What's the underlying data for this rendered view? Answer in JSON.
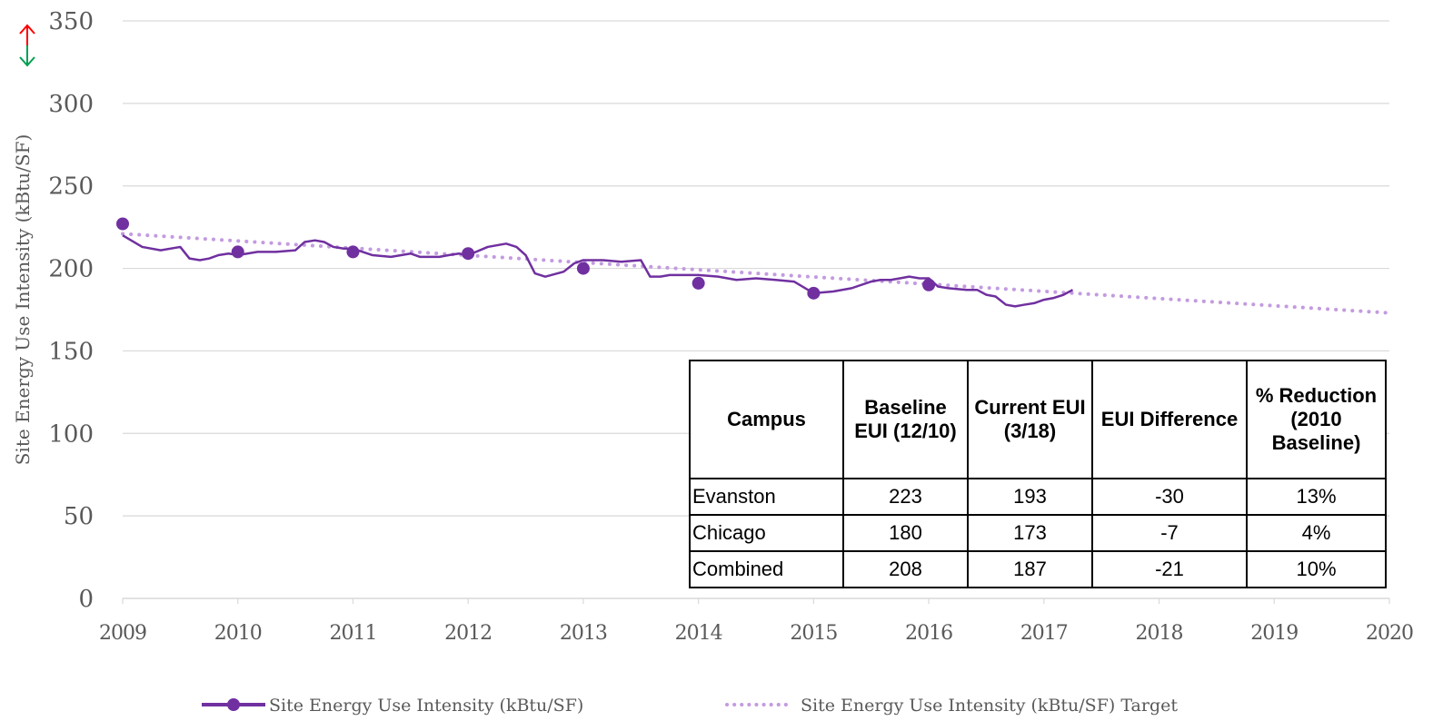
{
  "chart_data": {
    "type": "line",
    "ylabel": "Site Energy Use Intensity (kBtu/SF)",
    "ylim": [
      0,
      350
    ],
    "yticks": [
      0,
      50,
      100,
      150,
      200,
      250,
      300,
      350
    ],
    "xlim": [
      2009,
      2020
    ],
    "xticks": [
      "2009",
      "2010",
      "2011",
      "2012",
      "2013",
      "2014",
      "2015",
      "2016",
      "2017",
      "2018",
      "2019",
      "2020"
    ],
    "grid": true,
    "legend_position": "bottom",
    "axis_icon": {
      "up_color": "#ff0000",
      "down_color": "#00a050"
    },
    "colors": {
      "actual": "#7030a0",
      "target": "#c39be0",
      "grid": "#d9d9d9"
    },
    "series": [
      {
        "name": "Site Energy Use Intensity (kBtu/SF)",
        "style": "line-with-annual-markers",
        "x": [
          2009.0,
          2009.17,
          2009.33,
          2009.5,
          2009.58,
          2009.67,
          2009.75,
          2009.83,
          2009.92,
          2010.0,
          2010.17,
          2010.33,
          2010.5,
          2010.58,
          2010.67,
          2010.75,
          2010.83,
          2010.92,
          2011.0,
          2011.17,
          2011.33,
          2011.5,
          2011.58,
          2011.67,
          2011.75,
          2011.83,
          2011.92,
          2012.0,
          2012.17,
          2012.33,
          2012.42,
          2012.5,
          2012.58,
          2012.67,
          2012.83,
          2012.92,
          2013.0,
          2013.17,
          2013.33,
          2013.5,
          2013.58,
          2013.67,
          2013.75,
          2013.83,
          2013.92,
          2014.0,
          2014.17,
          2014.33,
          2014.5,
          2014.67,
          2014.83,
          2015.0,
          2015.17,
          2015.33,
          2015.5,
          2015.58,
          2015.67,
          2015.75,
          2015.83,
          2015.92,
          2016.0,
          2016.08,
          2016.17,
          2016.33,
          2016.42,
          2016.5,
          2016.58,
          2016.67,
          2016.75,
          2016.83,
          2016.92,
          2017.0,
          2017.08,
          2017.17,
          2017.25
        ],
        "y": [
          220,
          213,
          211,
          213,
          206,
          205,
          206,
          208,
          209,
          208,
          210,
          210,
          211,
          216,
          217,
          216,
          213,
          212,
          212,
          208,
          207,
          209,
          207,
          207,
          207,
          208,
          209,
          208,
          213,
          215,
          213,
          208,
          197,
          195,
          198,
          203,
          205,
          205,
          204,
          205,
          195,
          195,
          196,
          196,
          196,
          196,
          195,
          193,
          194,
          193,
          192,
          185,
          186,
          188,
          192,
          193,
          193,
          194,
          195,
          194,
          194,
          189,
          188,
          187,
          187,
          184,
          183,
          178,
          177,
          178,
          179,
          181,
          182,
          184,
          187
        ]
      },
      {
        "name": "Site Energy Use Intensity (kBtu/SF)",
        "style": "annual-markers",
        "x": [
          2009,
          2010,
          2011,
          2012,
          2013,
          2014,
          2015,
          2016
        ],
        "y": [
          227,
          210,
          210,
          209,
          200,
          191,
          185,
          190
        ]
      },
      {
        "name": "Site Energy Use Intensity (kBtu/SF) Target",
        "style": "dotted",
        "x": [
          2009,
          2020
        ],
        "y": [
          221,
          173
        ]
      }
    ],
    "table": {
      "headers": [
        "Campus",
        "Baseline EUI (12/10)",
        "Current EUI (3/18)",
        "EUI Difference",
        "% Reduction (2010 Baseline)"
      ],
      "rows": [
        [
          "Evanston",
          "223",
          "193",
          "-30",
          "13%"
        ],
        [
          "Chicago",
          "180",
          "173",
          "-7",
          "4%"
        ],
        [
          "Combined",
          "208",
          "187",
          "-21",
          "10%"
        ]
      ]
    }
  }
}
